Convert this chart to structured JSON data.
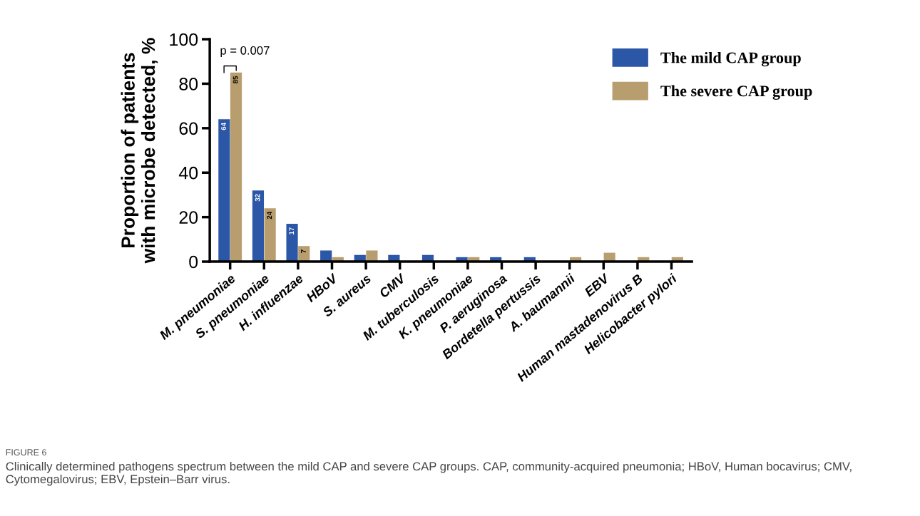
{
  "chart_data": {
    "type": "bar",
    "ylabel": "Proportion of patients\nwith microbe detected, %",
    "categories": [
      "M. pneumoniae",
      "S. pneumoniae",
      "H. influenzae",
      "HBoV",
      "S. aureus",
      "CMV",
      "M. tuberculosis",
      "K. pneumoniae",
      "P. aeruginosa",
      "Bordetella pertussis",
      "A. baumannii",
      "EBV",
      "Human mastadenovirus B",
      "Helicobacter pylori"
    ],
    "series": [
      {
        "name": "The mild CAP group",
        "color": "#2c56a6",
        "values": [
          64,
          32,
          17,
          5,
          3,
          3,
          3,
          2,
          2,
          2,
          0,
          0,
          0,
          0
        ],
        "value_labels": [
          "64",
          "32",
          "17",
          null,
          null,
          null,
          null,
          null,
          null,
          null,
          null,
          null,
          null,
          null
        ]
      },
      {
        "name": "The severe CAP group",
        "color": "#b89e6e",
        "values": [
          85,
          24,
          7,
          2,
          5,
          0,
          0,
          2,
          0,
          0,
          2,
          4,
          2,
          2
        ],
        "value_labels": [
          "85",
          "24",
          "7",
          null,
          null,
          null,
          null,
          null,
          null,
          null,
          null,
          null,
          null,
          null
        ]
      }
    ],
    "ylim": [
      0,
      100
    ],
    "yticks": [
      0,
      20,
      40,
      60,
      80,
      100
    ],
    "grid": false,
    "legend": "top right",
    "annotations": [
      "p = 0.007",
      "FIGURE 6",
      "Clinically determined pathogens spectrum between the mild CAP and severe CAP groups. CAP, community-acquired pneumonia; HBoV, Human bocavirus; CMV, Cytomegalovirus; EBV, Epstein–Barr virus."
    ]
  }
}
